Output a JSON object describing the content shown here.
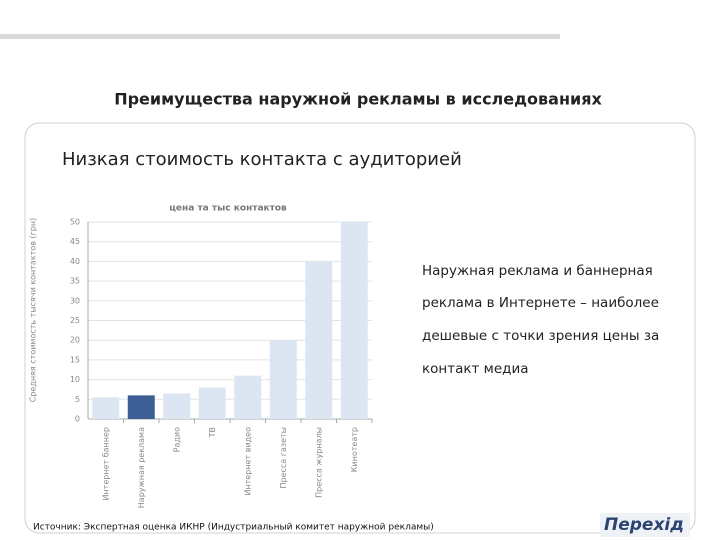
{
  "header": {
    "title": "Преимущества наружной рекламы в исследованиях"
  },
  "subtitle": "Низкая стоимость контакта с аудиторией",
  "chart_data": {
    "type": "bar",
    "title": "цена та тыс контактов",
    "y_label": "Средняя стоимость тысячи контактов (грн)",
    "categories": [
      "Интернет баннер",
      "Наружная реклама",
      "Радио",
      "ТВ",
      "Интернет видео",
      "Пресса газеты",
      "Пресса журналы",
      "Кинотеатр"
    ],
    "values": [
      5.5,
      6,
      6.5,
      8,
      11,
      20,
      40,
      50
    ],
    "colors": [
      "#dce6f2",
      "#3b5f94",
      "#dce6f2",
      "#dce6f2",
      "#dce6f2",
      "#dce6f2",
      "#dce6f2",
      "#dce6f2"
    ],
    "ylim": [
      0,
      50
    ],
    "yticks": [
      0,
      5,
      10,
      15,
      20,
      25,
      30,
      35,
      40,
      45,
      50
    ],
    "grid": true
  },
  "note": {
    "lines": [
      "Наружная реклама и баннерная",
      "реклама в Интернете – наиболее",
      "дешевые с точки зрения цены за",
      "контакт медиа"
    ]
  },
  "source": "Источник: Экспертная оценка ИКНР (Индустриальный комитет наружной рекламы)",
  "logo": "Перехід"
}
